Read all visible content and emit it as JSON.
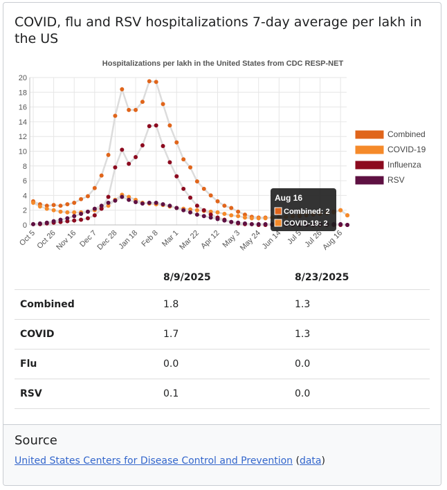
{
  "header": {
    "title": "COVID, flu and RSV hospitalizations 7-day average per lakh in the US"
  },
  "chart_data": {
    "type": "line",
    "title": "Hospitalizations per lakh in the United States from CDC RESP-NET",
    "categories": [
      "Oct 5",
      null,
      null,
      "Oct 26",
      null,
      null,
      "Nov 16",
      null,
      null,
      "Dec 7",
      null,
      null,
      "Dec 28",
      null,
      null,
      "Jan 18",
      null,
      null,
      "Feb 8",
      null,
      null,
      "Mar 1",
      null,
      null,
      "Mar 22",
      null,
      null,
      "Apr 12",
      null,
      null,
      "May 3",
      null,
      null,
      "May 24",
      null,
      null,
      "Jun 14",
      null,
      null,
      "Jul 5",
      null,
      null,
      "Jul 26",
      null,
      null,
      "Aug 16",
      null
    ],
    "series": [
      {
        "name": "Combined",
        "color": "#e0651b",
        "values": [
          3.2,
          2.8,
          2.6,
          2.7,
          2.6,
          2.8,
          3.0,
          3.5,
          3.9,
          5.0,
          6.7,
          9.5,
          14.8,
          18.4,
          15.6,
          15.6,
          16.7,
          19.5,
          19.4,
          16.4,
          13.5,
          11.2,
          8.9,
          7.8,
          5.9,
          4.9,
          4.0,
          3.2,
          2.6,
          2.3,
          1.8,
          1.4,
          1.1,
          1.0,
          1.0,
          1.0,
          1.1,
          1.1,
          1.2,
          1.2,
          1.3,
          1.4,
          1.5,
          1.6,
          1.8,
          2.0,
          1.3
        ]
      },
      {
        "name": "COVID-19",
        "color": "#f58a2a",
        "values": [
          3.0,
          2.5,
          2.2,
          2.0,
          1.8,
          1.7,
          1.7,
          1.7,
          1.8,
          2.0,
          2.3,
          2.6,
          3.4,
          4.1,
          3.8,
          3.4,
          3.0,
          2.9,
          2.8,
          2.7,
          2.5,
          2.3,
          2.2,
          2.1,
          2.0,
          1.9,
          1.8,
          1.7,
          1.5,
          1.3,
          1.2,
          1.0,
          0.9,
          0.9,
          0.9,
          1.0,
          1.0,
          1.1,
          1.2,
          1.3,
          1.4,
          1.5,
          1.5,
          1.6,
          1.7,
          2.0,
          1.3
        ]
      },
      {
        "name": "Influenza",
        "color": "#8c0a1f",
        "values": [
          0.1,
          0.1,
          0.2,
          0.3,
          0.4,
          0.5,
          0.6,
          0.7,
          0.9,
          1.3,
          2.2,
          3.8,
          7.8,
          10.2,
          8.3,
          9.2,
          10.8,
          13.4,
          13.5,
          10.7,
          8.5,
          6.6,
          4.9,
          3.7,
          2.6,
          2.0,
          1.4,
          1.0,
          0.7,
          0.4,
          0.2,
          0.1,
          0.1,
          0.0,
          0.0,
          0.0,
          0.0,
          0.0,
          0.0,
          0.0,
          0.0,
          0.0,
          0.0,
          0.0,
          0.0,
          0.0,
          0.0
        ]
      },
      {
        "name": "RSV",
        "color": "#5e1042",
        "values": [
          0.1,
          0.2,
          0.3,
          0.5,
          0.7,
          0.9,
          1.2,
          1.5,
          1.8,
          2.2,
          2.6,
          3.0,
          3.3,
          3.8,
          3.4,
          3.1,
          2.9,
          3.0,
          3.0,
          2.8,
          2.6,
          2.3,
          2.0,
          1.7,
          1.4,
          1.2,
          1.0,
          0.8,
          0.6,
          0.4,
          0.3,
          0.2,
          0.1,
          0.1,
          0.1,
          0.1,
          0.1,
          0.1,
          0.1,
          0.1,
          0.1,
          0.1,
          0.1,
          0.1,
          0.1,
          0.1,
          0.0
        ]
      }
    ],
    "ylim": [
      0,
      20
    ],
    "yticks": [
      0,
      2,
      4,
      6,
      8,
      10,
      12,
      14,
      16,
      18,
      20
    ],
    "grid": true,
    "legend": "right",
    "tooltip": {
      "title": "Aug 16",
      "lines": [
        "Combined: 2",
        "COVID-19: 2"
      ]
    }
  },
  "table": {
    "columns": [
      "8/9/2025",
      "8/23/2025"
    ],
    "rows": [
      [
        "Combined",
        "1.8",
        "1.3"
      ],
      [
        "COVID",
        "1.7",
        "1.3"
      ],
      [
        "Flu",
        "0.0",
        "0.0"
      ],
      [
        "RSV",
        "0.1",
        "0.0"
      ]
    ]
  },
  "source": {
    "heading": "Source",
    "link": "United States Centers for Disease Control and Prevention",
    "open": "(",
    "data_link": "data",
    "close": ")"
  }
}
